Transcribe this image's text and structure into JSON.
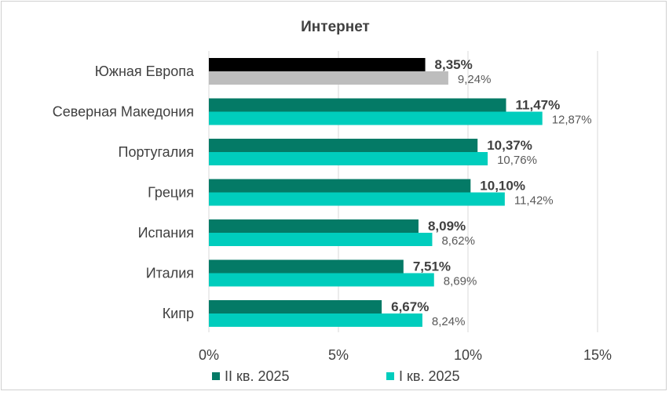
{
  "chart_data": {
    "type": "bar",
    "orientation": "horizontal",
    "title": "Интернет",
    "xlabel": "",
    "ylabel": "",
    "xlim": [
      0,
      15
    ],
    "xticks": [
      "0%",
      "5%",
      "10%",
      "15%"
    ],
    "grid": "vertical",
    "legend": "bottom-center",
    "categories": [
      "Южная Европа",
      "Северная Македония",
      "Португалия",
      "Греция",
      "Испания",
      "Италия",
      "Кипр"
    ],
    "series": [
      {
        "name": "II кв. 2025",
        "color": "#047a66",
        "highlight_color": "#000000",
        "values": [
          8.35,
          11.47,
          10.37,
          10.1,
          8.09,
          7.51,
          6.67
        ],
        "labels": [
          "8,35%",
          "11,47%",
          "10,37%",
          "10,10%",
          "8,09%",
          "7,51%",
          "6,67%"
        ]
      },
      {
        "name": "I кв. 2025",
        "color": "#00cdbd",
        "highlight_color": "#bdbdbd",
        "values": [
          9.24,
          12.87,
          10.76,
          11.42,
          8.62,
          8.69,
          8.24
        ],
        "labels": [
          "9,24%",
          "12,87%",
          "10,76%",
          "11,42%",
          "8,62%",
          "8,69%",
          "8,24%"
        ]
      }
    ]
  }
}
